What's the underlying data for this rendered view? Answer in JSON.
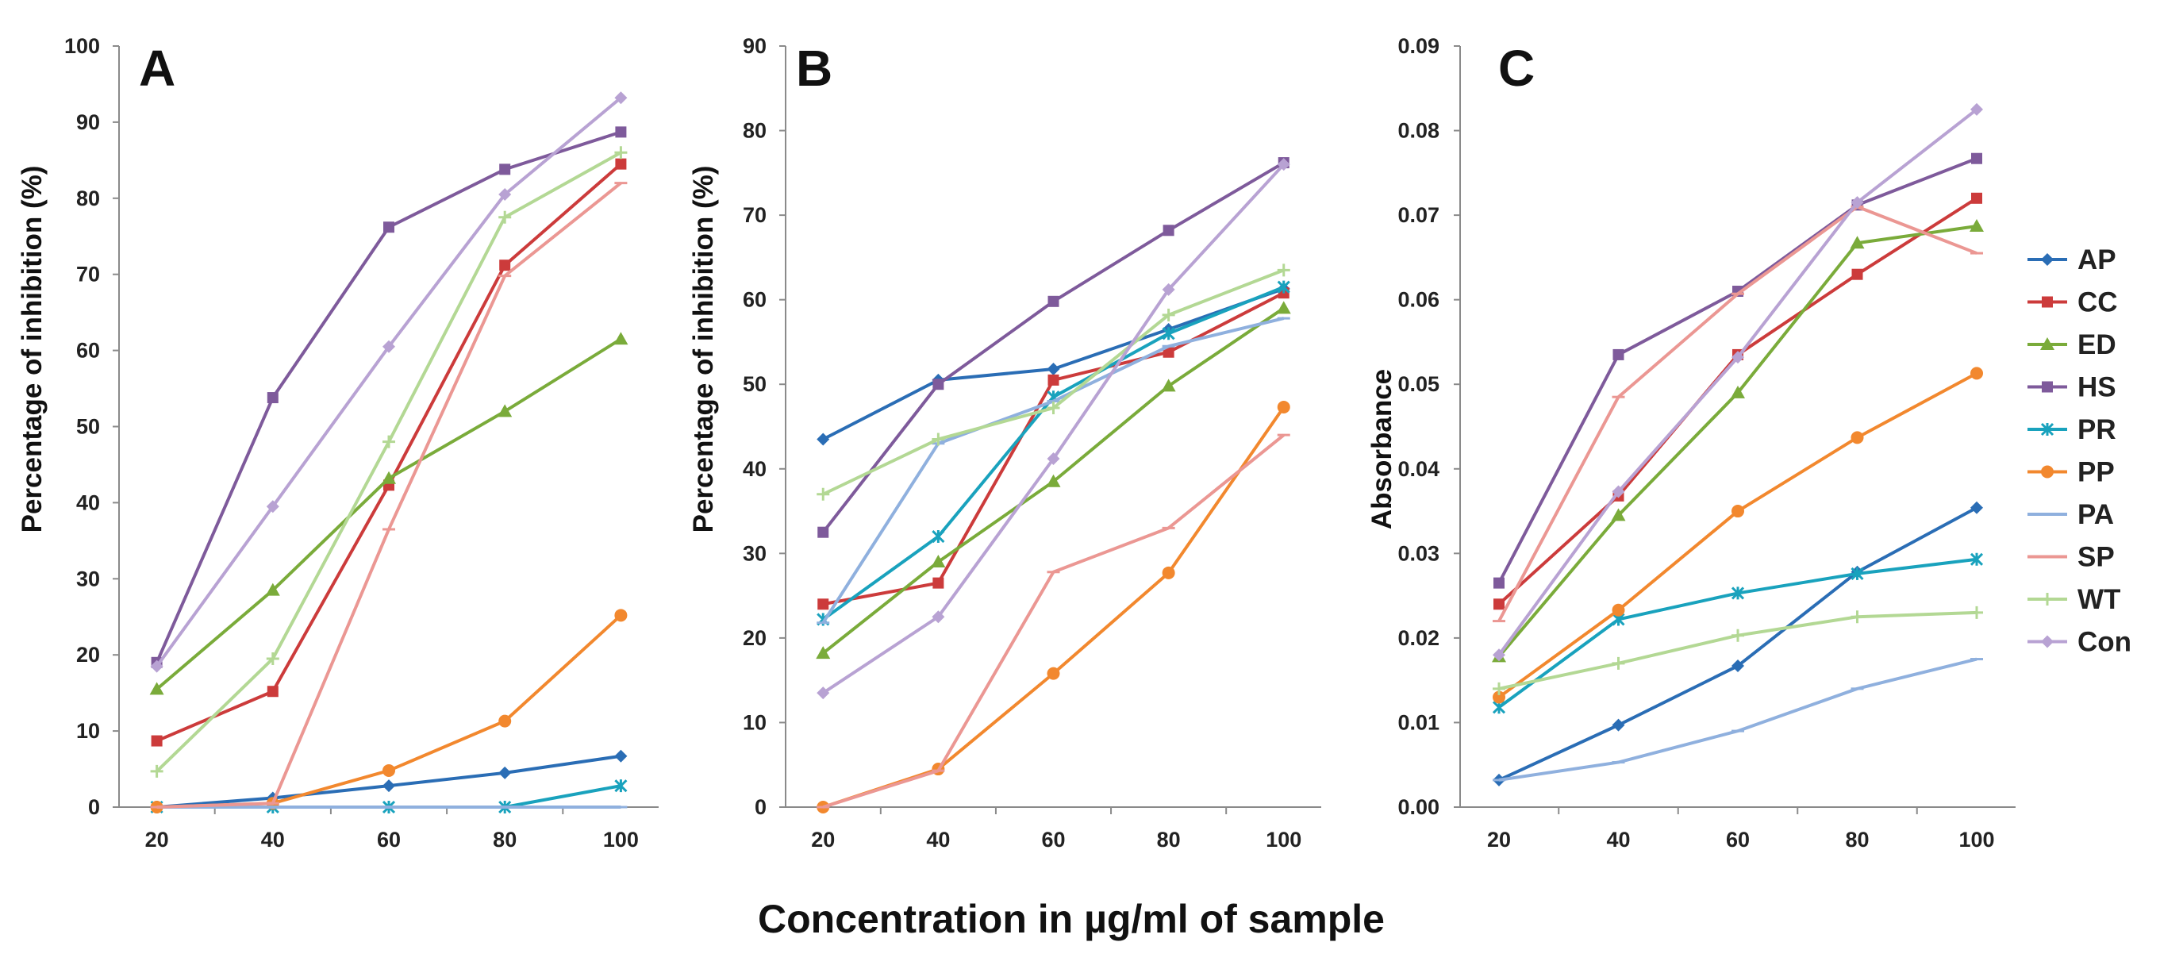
{
  "figure": {
    "x_title": "Concentration in µg/ml of sample"
  },
  "colors": {
    "AP": "#2a6db5",
    "CC": "#cc3b3b",
    "ED": "#7aab3a",
    "HS": "#7e5a9b",
    "PR": "#19a2bd",
    "PP": "#f2882e",
    "PA": "#8fb0de",
    "SP": "#eb9793",
    "WT": "#b3d894",
    "Con": "#b8a2d3"
  },
  "legend": [
    "AP",
    "CC",
    "ED",
    "HS",
    "PR",
    "PP",
    "PA",
    "SP",
    "WT",
    "Con"
  ],
  "chart_data": [
    {
      "type": "line",
      "panel_label": "A",
      "ylabel": "Percentage of inhibition (%)",
      "x": [
        20,
        40,
        60,
        80,
        100
      ],
      "xticks": [
        "20",
        "40",
        "60",
        "80",
        "100"
      ],
      "ylim": [
        0,
        100
      ],
      "yticks": [
        "0",
        "10",
        "20",
        "30",
        "40",
        "50",
        "60",
        "70",
        "80",
        "90",
        "100"
      ],
      "grid": false,
      "series": [
        {
          "name": "AP",
          "values": [
            0,
            1.2,
            2.8,
            4.5,
            6.7
          ]
        },
        {
          "name": "CC",
          "values": [
            8.7,
            15.2,
            42.3,
            71.2,
            84.5
          ]
        },
        {
          "name": "ED",
          "values": [
            15.5,
            28.5,
            43.2,
            52.0,
            61.5
          ]
        },
        {
          "name": "HS",
          "values": [
            19.0,
            53.8,
            76.2,
            83.8,
            88.7
          ]
        },
        {
          "name": "PR",
          "values": [
            0,
            0,
            0,
            0,
            2.8
          ]
        },
        {
          "name": "PP",
          "values": [
            0,
            0.5,
            4.8,
            11.3,
            25.2
          ]
        },
        {
          "name": "PA",
          "values": [
            0,
            0,
            0,
            0,
            0
          ]
        },
        {
          "name": "SP",
          "values": [
            0,
            0.5,
            36.5,
            69.8,
            82.0
          ]
        },
        {
          "name": "WT",
          "values": [
            4.7,
            19.5,
            48.0,
            77.5,
            86.0
          ]
        },
        {
          "name": "Con",
          "values": [
            18.5,
            39.5,
            60.5,
            80.5,
            93.2
          ]
        }
      ]
    },
    {
      "type": "line",
      "panel_label": "B",
      "ylabel": "Percentage of inhibition (%)",
      "x": [
        20,
        40,
        60,
        80,
        100
      ],
      "xticks": [
        "20",
        "40",
        "60",
        "80",
        "100"
      ],
      "ylim": [
        0,
        90
      ],
      "yticks": [
        "0",
        "10",
        "20",
        "30",
        "40",
        "50",
        "60",
        "70",
        "80",
        "90"
      ],
      "grid": false,
      "series": [
        {
          "name": "AP",
          "values": [
            43.5,
            50.5,
            51.8,
            56.5,
            61.3
          ]
        },
        {
          "name": "CC",
          "values": [
            24.0,
            26.5,
            50.5,
            53.8,
            60.8
          ]
        },
        {
          "name": "ED",
          "values": [
            18.2,
            29.0,
            38.5,
            49.8,
            59.0
          ]
        },
        {
          "name": "HS",
          "values": [
            32.5,
            50.0,
            59.8,
            68.2,
            76.2
          ]
        },
        {
          "name": "PR",
          "values": [
            22.2,
            32.0,
            48.5,
            56.0,
            61.5
          ]
        },
        {
          "name": "PP",
          "values": [
            0,
            4.5,
            15.8,
            27.7,
            47.3
          ]
        },
        {
          "name": "PA",
          "values": [
            21.8,
            43.0,
            48.0,
            54.5,
            57.8
          ]
        },
        {
          "name": "SP",
          "values": [
            0,
            4.3,
            27.8,
            33.0,
            44.0
          ]
        },
        {
          "name": "WT",
          "values": [
            37.0,
            43.5,
            47.2,
            58.2,
            63.5
          ]
        },
        {
          "name": "Con",
          "values": [
            13.5,
            22.5,
            41.2,
            61.2,
            76.0
          ]
        }
      ]
    },
    {
      "type": "line",
      "panel_label": "C",
      "ylabel": "Absorbance",
      "x": [
        20,
        40,
        60,
        80,
        100
      ],
      "xticks": [
        "20",
        "40",
        "60",
        "80",
        "100"
      ],
      "ylim": [
        0,
        0.09
      ],
      "yticks": [
        "0.00",
        "0.01",
        "0.02",
        "0.03",
        "0.04",
        "0.05",
        "0.06",
        "0.07",
        "0.08",
        "0.09"
      ],
      "grid": false,
      "series": [
        {
          "name": "AP",
          "values": [
            0.0032,
            0.0097,
            0.0167,
            0.0278,
            0.0354
          ]
        },
        {
          "name": "CC",
          "values": [
            0.024,
            0.0368,
            0.0535,
            0.063,
            0.072
          ]
        },
        {
          "name": "ED",
          "values": [
            0.0178,
            0.0345,
            0.049,
            0.0667,
            0.0687
          ]
        },
        {
          "name": "HS",
          "values": [
            0.0265,
            0.0535,
            0.061,
            0.0712,
            0.0767
          ]
        },
        {
          "name": "PR",
          "values": [
            0.0118,
            0.0222,
            0.0253,
            0.0276,
            0.0293
          ]
        },
        {
          "name": "PP",
          "values": [
            0.013,
            0.0233,
            0.035,
            0.0437,
            0.0513
          ]
        },
        {
          "name": "PA",
          "values": [
            0.0032,
            0.0053,
            0.009,
            0.014,
            0.0175
          ]
        },
        {
          "name": "SP",
          "values": [
            0.022,
            0.0485,
            0.0607,
            0.071,
            0.0655
          ]
        },
        {
          "name": "WT",
          "values": [
            0.014,
            0.017,
            0.0203,
            0.0225,
            0.023
          ]
        },
        {
          "name": "Con",
          "values": [
            0.018,
            0.0373,
            0.0532,
            0.0715,
            0.0825
          ]
        }
      ]
    }
  ]
}
